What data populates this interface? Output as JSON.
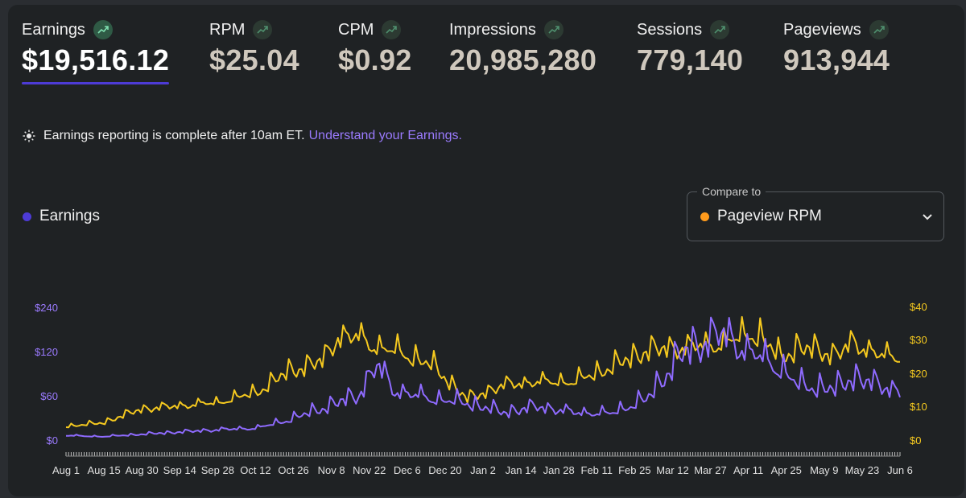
{
  "metrics": [
    {
      "label": "Earnings",
      "value": "$19,516.12",
      "active": true
    },
    {
      "label": "RPM",
      "value": "$25.04",
      "active": false
    },
    {
      "label": "CPM",
      "value": "$0.92",
      "active": false
    },
    {
      "label": "Impressions",
      "value": "20,985,280",
      "active": false
    },
    {
      "label": "Sessions",
      "value": "779,140",
      "active": false
    },
    {
      "label": "Pageviews",
      "value": "913,944",
      "active": false
    }
  ],
  "notice": {
    "text": "Earnings reporting is complete after 10am ET.",
    "link": "Understand your Earnings."
  },
  "compare": {
    "label": "Compare to",
    "value": "Pageview RPM"
  },
  "colors": {
    "earnings": "#8f6bff",
    "rpm": "#f5c91f",
    "accent": "#4d3bd6",
    "orange_dot": "#ff9b1c",
    "link": "#9b7bff"
  },
  "chart_data": {
    "type": "line",
    "legend": "Earnings",
    "x_tick_labels": [
      "Aug 1",
      "Aug 15",
      "Aug 30",
      "Sep 14",
      "Sep 28",
      "Oct 12",
      "Oct 26",
      "Nov 8",
      "Nov 22",
      "Dec 6",
      "Dec 20",
      "Jan 2",
      "Jan 14",
      "Jan 28",
      "Feb 11",
      "Feb 25",
      "Mar 12",
      "Mar 27",
      "Apr 11",
      "Apr 25",
      "May 9",
      "May 23",
      "Jun 6"
    ],
    "y_left_ticks": [
      "$0",
      "$60",
      "$120",
      "$240"
    ],
    "y_right_ticks": [
      "$0",
      "$10",
      "$20",
      "$30",
      "$40"
    ],
    "y_left_range": [
      0,
      240
    ],
    "y_right_range": [
      0,
      40
    ],
    "series": [
      {
        "name": "Earnings",
        "axis": "left",
        "keypoints": [
          [
            0,
            8
          ],
          [
            14,
            6
          ],
          [
            29,
            10
          ],
          [
            44,
            14
          ],
          [
            59,
            18
          ],
          [
            74,
            21
          ],
          [
            86,
            35
          ],
          [
            99,
            55
          ],
          [
            113,
            78
          ],
          [
            120,
            130
          ],
          [
            127,
            85
          ],
          [
            141,
            72
          ],
          [
            155,
            64
          ],
          [
            169,
            48
          ],
          [
            182,
            58
          ],
          [
            196,
            48
          ],
          [
            210,
            46
          ],
          [
            224,
            70
          ],
          [
            238,
            150
          ],
          [
            253,
            185
          ],
          [
            264,
            150
          ],
          [
            268,
            145
          ],
          [
            276,
            122
          ],
          [
            283,
            95
          ],
          [
            297,
            88
          ],
          [
            304,
            110
          ],
          [
            311,
            98
          ],
          [
            318,
            90
          ],
          [
            322,
            85
          ]
        ]
      },
      {
        "name": "Pageview RPM",
        "axis": "right",
        "keypoints": [
          [
            0,
            4
          ],
          [
            14,
            5
          ],
          [
            29,
            9
          ],
          [
            44,
            10
          ],
          [
            59,
            11
          ],
          [
            74,
            14
          ],
          [
            86,
            20
          ],
          [
            99,
            23
          ],
          [
            105,
            30
          ],
          [
            113,
            30
          ],
          [
            120,
            27
          ],
          [
            127,
            26
          ],
          [
            141,
            22
          ],
          [
            155,
            12
          ],
          [
            169,
            16
          ],
          [
            182,
            17
          ],
          [
            196,
            17
          ],
          [
            210,
            21
          ],
          [
            224,
            26
          ],
          [
            238,
            27
          ],
          [
            253,
            28
          ],
          [
            264,
            31
          ],
          [
            268,
            30
          ],
          [
            276,
            24
          ],
          [
            283,
            27
          ],
          [
            297,
            25
          ],
          [
            304,
            28
          ],
          [
            311,
            26
          ],
          [
            318,
            24
          ],
          [
            322,
            24
          ]
        ]
      }
    ]
  }
}
